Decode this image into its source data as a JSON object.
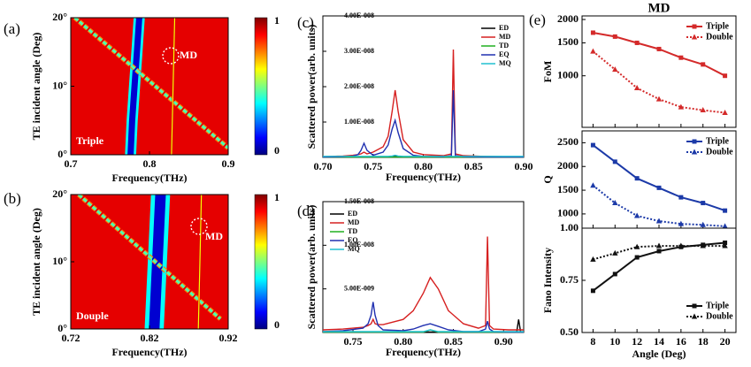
{
  "chart_data": [
    {
      "type": "heatmap",
      "label": "(a)",
      "xlabel": "Frequency(THz)",
      "ylabel": "TE incident angle (Deg)",
      "xlim": [
        0.7,
        0.9
      ],
      "xticks": [
        0.7,
        0.8,
        0.9
      ],
      "ylim": [
        0,
        20
      ],
      "yticks": [
        {
          "value": 0,
          "label": "0°"
        },
        {
          "value": 10,
          "label": "10°"
        },
        {
          "value": 20,
          "label": "20°"
        }
      ],
      "clim": [
        0,
        1
      ],
      "cticks": [
        0,
        1
      ],
      "colormap": [
        "#00007f",
        "#0000ff",
        "#007fff",
        "#00ffff",
        "#7fff7f",
        "#ffff00",
        "#ff7f00",
        "#ff0000",
        "#7f0000"
      ],
      "background": 0.9,
      "features": [
        {
          "x": [
            0.776,
            0.778,
            0.781,
            0.784,
            0.787
          ],
          "y": [
            0,
            5,
            10,
            15,
            20
          ],
          "value": 0.08
        },
        {
          "x": [
            0.705,
            0.9
          ],
          "y": [
            20,
            1
          ],
          "value": 0.45
        },
        {
          "x": [
            0.828,
            0.83,
            0.832
          ],
          "y": [
            0,
            10,
            20
          ],
          "value": 0.62
        }
      ],
      "annotations": [
        "MD",
        "Triple"
      ]
    },
    {
      "type": "heatmap",
      "label": "(b)",
      "xlabel": "Frequency(THz)",
      "ylabel": "TE incident angle (Deg)",
      "xlim": [
        0.72,
        0.92
      ],
      "xticks": [
        0.72,
        0.82,
        0.92
      ],
      "ylim": [
        0,
        20
      ],
      "yticks": [
        {
          "value": 0,
          "label": "0°"
        },
        {
          "value": 10,
          "label": "10°"
        },
        {
          "value": 20,
          "label": "20°"
        }
      ],
      "clim": [
        0,
        1
      ],
      "cticks": [
        0,
        1
      ],
      "colormap": [
        "#00007f",
        "#0000ff",
        "#007fff",
        "#00ffff",
        "#7fff7f",
        "#ffff00",
        "#ff7f00",
        "#ff0000",
        "#7f0000"
      ],
      "background": 0.9,
      "features": [
        {
          "x": [
            0.826,
            0.828,
            0.83,
            0.832,
            0.834
          ],
          "y": [
            0,
            5,
            10,
            15,
            20
          ],
          "value": 0.08
        },
        {
          "x": [
            0.73,
            0.91
          ],
          "y": [
            20,
            1.5
          ],
          "value": 0.45
        },
        {
          "x": [
            0.882,
            0.884,
            0.886
          ],
          "y": [
            0,
            10,
            20
          ],
          "value": 0.62
        }
      ],
      "annotations": [
        "MD",
        "Douple"
      ]
    },
    {
      "type": "line",
      "label": "(c)",
      "xlabel": "Frequency(THz)",
      "ylabel": "Scattered power(arb. units)",
      "xlim": [
        0.7,
        0.9
      ],
      "xticks": [
        {
          "value": 0.7,
          "label": "0.70"
        },
        {
          "value": 0.75,
          "label": "0.75"
        },
        {
          "value": 0.8,
          "label": "0.80"
        },
        {
          "value": 0.85,
          "label": "0.85"
        },
        {
          "value": 0.9,
          "label": "0.90"
        }
      ],
      "ylim": [
        0,
        4e-08
      ],
      "yticks": [
        {
          "value": 1e-08,
          "label": "1.00E-008"
        },
        {
          "value": 2e-08,
          "label": "2.00E-008"
        },
        {
          "value": 3e-08,
          "label": "3.00E-008"
        },
        {
          "value": 4e-08,
          "label": "4.00E-008"
        }
      ],
      "legend": "upper right",
      "x": [
        0.7,
        0.72,
        0.73,
        0.735,
        0.738,
        0.741,
        0.744,
        0.75,
        0.76,
        0.765,
        0.769,
        0.772,
        0.775,
        0.78,
        0.79,
        0.8,
        0.82,
        0.828,
        0.83,
        0.832,
        0.84,
        0.86,
        0.88,
        0.9
      ],
      "series": [
        {
          "name": "ED",
          "color": "#000000",
          "values": [
            2e-10,
            2e-10,
            2e-10,
            2e-10,
            2e-10,
            2e-10,
            2e-10,
            2e-10,
            2e-10,
            2e-10,
            2e-10,
            2e-10,
            2e-10,
            2e-10,
            2e-10,
            2e-10,
            2e-10,
            2e-10,
            2e-10,
            2e-10,
            2e-10,
            2e-10,
            2e-10,
            2e-10
          ]
        },
        {
          "name": "MD",
          "color": "#d62020",
          "values": [
            2e-10,
            4e-10,
            6e-10,
            8e-10,
            1e-09,
            1.5e-09,
            1e-09,
            1.5e-09,
            3e-09,
            6e-09,
            1.3e-08,
            1.9e-08,
            1.3e-08,
            5e-09,
            1.5e-09,
            8e-10,
            5e-10,
            1e-09,
            3.05e-08,
            1e-09,
            5e-10,
            3e-10,
            2e-10,
            2e-10
          ]
        },
        {
          "name": "TD",
          "color": "#20b020",
          "values": [
            1e-10,
            1e-10,
            1e-10,
            1e-10,
            1e-10,
            1e-10,
            1e-10,
            1e-10,
            1e-10,
            1e-10,
            1e-10,
            1e-10,
            1e-10,
            1e-10,
            1e-10,
            1e-10,
            1e-10,
            1e-10,
            1e-10,
            1e-10,
            1e-10,
            1e-10,
            1e-10,
            1e-10
          ]
        },
        {
          "name": "EQ",
          "color": "#2030b0",
          "values": [
            1e-10,
            2e-10,
            4e-10,
            8e-10,
            2e-09,
            4e-09,
            2e-09,
            6e-10,
            1.5e-09,
            3.5e-09,
            8e-09,
            1.05e-08,
            7e-09,
            2.5e-09,
            6e-10,
            3e-10,
            2e-10,
            5e-10,
            1.9e-08,
            5e-10,
            2e-10,
            1e-10,
            1e-10,
            1e-10
          ]
        },
        {
          "name": "MQ",
          "color": "#20c0d0",
          "values": [
            3e-10,
            3e-10,
            3e-10,
            3e-10,
            3e-10,
            3e-10,
            3e-10,
            3e-10,
            3e-10,
            3e-10,
            4e-10,
            6e-10,
            4e-10,
            3e-10,
            3e-10,
            3e-10,
            3e-10,
            3e-10,
            3e-10,
            3e-10,
            3e-10,
            3e-10,
            3e-10,
            3e-10
          ]
        }
      ]
    },
    {
      "type": "line",
      "label": "(d)",
      "xlabel": "Frequency(THz)",
      "ylabel": "Scattered power(arb. units)",
      "xlim": [
        0.72,
        0.92
      ],
      "xticks": [
        {
          "value": 0.75,
          "label": "0.75"
        },
        {
          "value": 0.8,
          "label": "0.80"
        },
        {
          "value": 0.85,
          "label": "0.85"
        },
        {
          "value": 0.9,
          "label": "0.90"
        }
      ],
      "ylim": [
        0,
        1.5e-08
      ],
      "yticks": [
        {
          "value": 5e-09,
          "label": "5.00E-009"
        },
        {
          "value": 1e-08,
          "label": "1.00E-008"
        },
        {
          "value": 1.5e-08,
          "label": "1.50E-008"
        }
      ],
      "legend": "upper left",
      "x": [
        0.72,
        0.74,
        0.76,
        0.765,
        0.768,
        0.77,
        0.772,
        0.775,
        0.78,
        0.8,
        0.81,
        0.82,
        0.827,
        0.835,
        0.845,
        0.86,
        0.875,
        0.882,
        0.884,
        0.886,
        0.89,
        0.905,
        0.913,
        0.915,
        0.917,
        0.92
      ],
      "series": [
        {
          "name": "ED",
          "color": "#000000",
          "values": [
            5e-11,
            5e-11,
            5e-11,
            5e-11,
            5e-11,
            5e-11,
            5e-11,
            5e-11,
            5e-11,
            5e-11,
            5e-11,
            5e-11,
            5e-11,
            5e-11,
            5e-11,
            5e-11,
            5e-11,
            5e-11,
            5e-11,
            5e-11,
            5e-11,
            5e-11,
            5e-11,
            1.5e-09,
            5e-11,
            5e-11
          ]
        },
        {
          "name": "MD",
          "color": "#d62020",
          "values": [
            3e-10,
            4e-10,
            6e-10,
            8e-10,
            1e-09,
            1.5e-09,
            1e-09,
            9e-10,
            9e-10,
            1.5e-09,
            2.5e-09,
            4.5e-09,
            6.3e-09,
            5e-09,
            2.5e-09,
            1e-09,
            5e-10,
            8e-10,
            1.1e-08,
            8e-10,
            4e-10,
            3e-10,
            3e-10,
            3e-10,
            3e-10,
            3e-10
          ]
        },
        {
          "name": "TD",
          "color": "#20b020",
          "values": [
            5e-11,
            5e-11,
            5e-11,
            5e-11,
            5e-11,
            5e-11,
            5e-11,
            5e-11,
            5e-11,
            5e-11,
            5e-11,
            5e-11,
            3e-10,
            5e-11,
            5e-11,
            5e-11,
            5e-11,
            5e-11,
            5e-11,
            5e-11,
            5e-11,
            5e-11,
            5e-11,
            5e-11,
            5e-11,
            5e-11
          ]
        },
        {
          "name": "EQ",
          "color": "#2030b0",
          "values": [
            1e-10,
            2e-10,
            5e-10,
            1e-09,
            2e-09,
            3.5e-09,
            2e-09,
            8e-10,
            3e-10,
            2e-10,
            4e-10,
            8e-10,
            1e-09,
            7e-10,
            3e-10,
            1e-10,
            1e-10,
            4e-10,
            1.3e-09,
            4e-10,
            1e-10,
            5e-11,
            5e-11,
            5e-11,
            5e-11,
            5e-11
          ]
        },
        {
          "name": "MQ",
          "color": "#20c0d0",
          "values": [
            1e-10,
            1e-10,
            1e-10,
            1e-10,
            1e-10,
            1e-10,
            1e-10,
            1e-10,
            1e-10,
            1e-10,
            1e-10,
            1e-10,
            3e-10,
            1e-10,
            1e-10,
            1e-10,
            1e-10,
            1e-10,
            1e-10,
            1e-10,
            1e-10,
            1e-10,
            1e-10,
            1e-10,
            1e-10,
            1e-10
          ]
        }
      ]
    },
    {
      "type": "multi-line",
      "label": "(e)",
      "title": "MD",
      "xlabel": "Angle (Deg)",
      "x": [
        8,
        10,
        12,
        14,
        16,
        18,
        20
      ],
      "xlim": [
        7,
        21
      ],
      "xticks": [
        8,
        10,
        12,
        14,
        16,
        18,
        20
      ],
      "subplots": [
        {
          "ylabel": "FoM",
          "log": true,
          "ylim": [
            530,
            2090
          ],
          "yticks": [
            1000,
            1500,
            2000
          ],
          "legend": "upper right",
          "series": [
            {
              "name": "Triple",
              "color": "#d42a2a",
              "marker": "square",
              "linestyle": "solid",
              "values": [
                1700,
                1620,
                1500,
                1390,
                1250,
                1150,
                1000
              ]
            },
            {
              "name": "Double",
              "color": "#d42a2a",
              "marker": "triangle",
              "linestyle": "dotted",
              "values": [
                1350,
                1080,
                860,
                750,
                680,
                655,
                634
              ]
            }
          ]
        },
        {
          "ylabel": "Q",
          "log": false,
          "ylim": [
            700,
            2750
          ],
          "yticks": [
            1000,
            1500,
            2000,
            2500
          ],
          "legend": "upper right",
          "series": [
            {
              "name": "Triple",
              "color": "#1c3aa8",
              "marker": "square",
              "linestyle": "solid",
              "values": [
                2450,
                2100,
                1750,
                1550,
                1350,
                1230,
                1070
              ]
            },
            {
              "name": "Double",
              "color": "#1c3aa8",
              "marker": "triangle",
              "linestyle": "dotted",
              "values": [
                1600,
                1230,
                960,
                850,
                790,
                770,
                740
              ]
            }
          ]
        },
        {
          "ylabel": "Fano Intensity",
          "log": false,
          "ylim": [
            0.5,
            1.0
          ],
          "yticks": [
            {
              "value": 0.5,
              "label": "0.50"
            },
            {
              "value": 0.75,
              "label": "0.75"
            },
            {
              "value": 1.0,
              "label": "1.00"
            }
          ],
          "legend": "lower right",
          "series": [
            {
              "name": "Triple",
              "color": "#111111",
              "marker": "square",
              "linestyle": "solid",
              "values": [
                0.7,
                0.78,
                0.86,
                0.89,
                0.91,
                0.92,
                0.93
              ]
            },
            {
              "name": "Double",
              "color": "#111111",
              "marker": "triangle",
              "linestyle": "dotted",
              "values": [
                0.85,
                0.88,
                0.91,
                0.915,
                0.915,
                0.915,
                0.915
              ]
            }
          ]
        }
      ]
    }
  ]
}
